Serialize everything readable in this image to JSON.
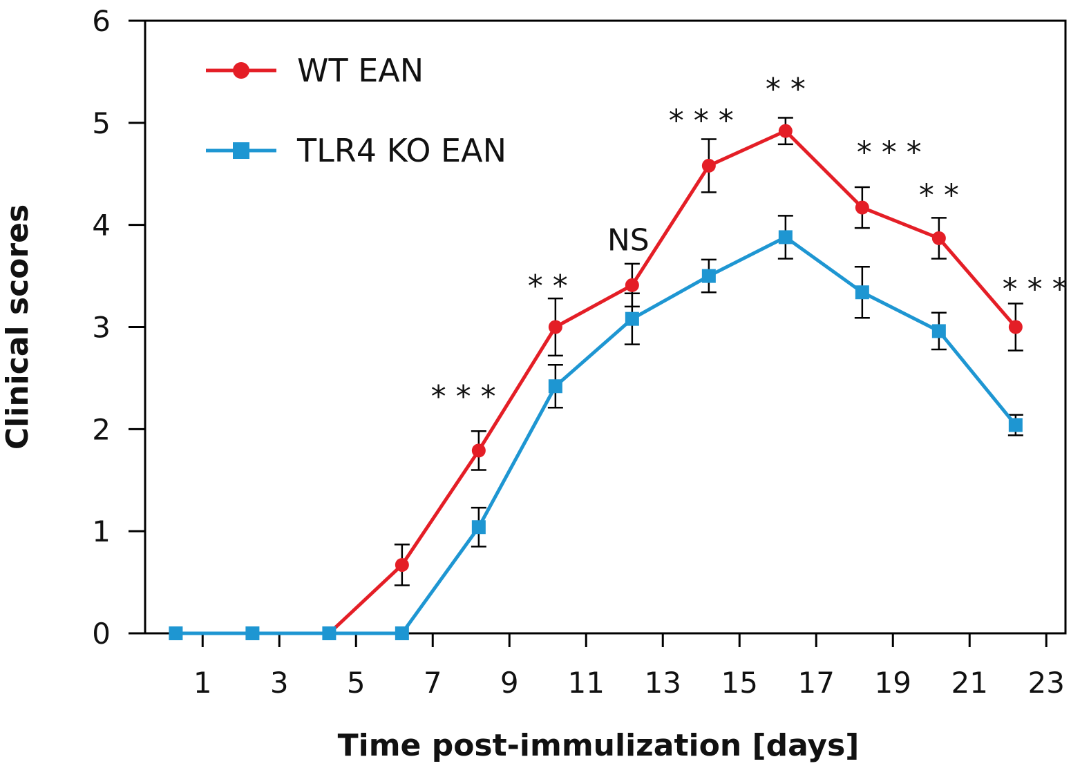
{
  "chart_data": {
    "type": "line",
    "title": "",
    "xlabel": "Time post-immulization [days]",
    "ylabel": "Clinical scores",
    "xlim": [
      -0.5,
      23.5
    ],
    "ylim": [
      0,
      6
    ],
    "x_ticks": [
      1,
      3,
      5,
      7,
      9,
      11,
      13,
      15,
      17,
      19,
      21,
      23
    ],
    "y_ticks": [
      0,
      1,
      2,
      3,
      4,
      5,
      6
    ],
    "grid": false,
    "legend_position": "top-left",
    "series": [
      {
        "name": "WT EAN",
        "color": "#e41e26",
        "marker": "circle",
        "x": [
          0.3,
          2.3,
          4.3,
          6.2,
          8.2,
          10.2,
          12.2,
          14.2,
          16.2,
          18.2,
          20.2,
          22.2
        ],
        "y": [
          0,
          0,
          0,
          0.67,
          1.79,
          3.0,
          3.41,
          4.58,
          4.92,
          4.17,
          3.87,
          3.0
        ],
        "err": [
          0,
          0,
          0,
          0.2,
          0.19,
          0.28,
          0.21,
          0.26,
          0.13,
          0.2,
          0.2,
          0.23
        ]
      },
      {
        "name": "TLR4 KO EAN",
        "color": "#1e96d2",
        "marker": "square",
        "x": [
          0.3,
          2.3,
          4.3,
          6.2,
          8.2,
          10.2,
          12.2,
          14.2,
          16.2,
          18.2,
          20.2,
          22.2
        ],
        "y": [
          0,
          0,
          0,
          0,
          1.04,
          2.42,
          3.08,
          3.5,
          3.88,
          3.34,
          2.96,
          2.04
        ],
        "err": [
          0,
          0,
          0,
          0,
          0.19,
          0.21,
          0.25,
          0.16,
          0.21,
          0.25,
          0.18,
          0.1
        ]
      }
    ],
    "annotations": [
      {
        "text": "* * *",
        "x": 7.8,
        "y": 2.22
      },
      {
        "text": "* *",
        "x": 10.0,
        "y": 3.3
      },
      {
        "text": "NS",
        "x": 12.1,
        "y": 3.75
      },
      {
        "text": "* * *",
        "x": 14.0,
        "y": 4.92
      },
      {
        "text": "* *",
        "x": 16.2,
        "y": 5.23
      },
      {
        "text": "* * *",
        "x": 18.9,
        "y": 4.61
      },
      {
        "text": "* *",
        "x": 20.2,
        "y": 4.19
      },
      {
        "text": "* * *",
        "x": 22.7,
        "y": 3.27
      }
    ]
  }
}
